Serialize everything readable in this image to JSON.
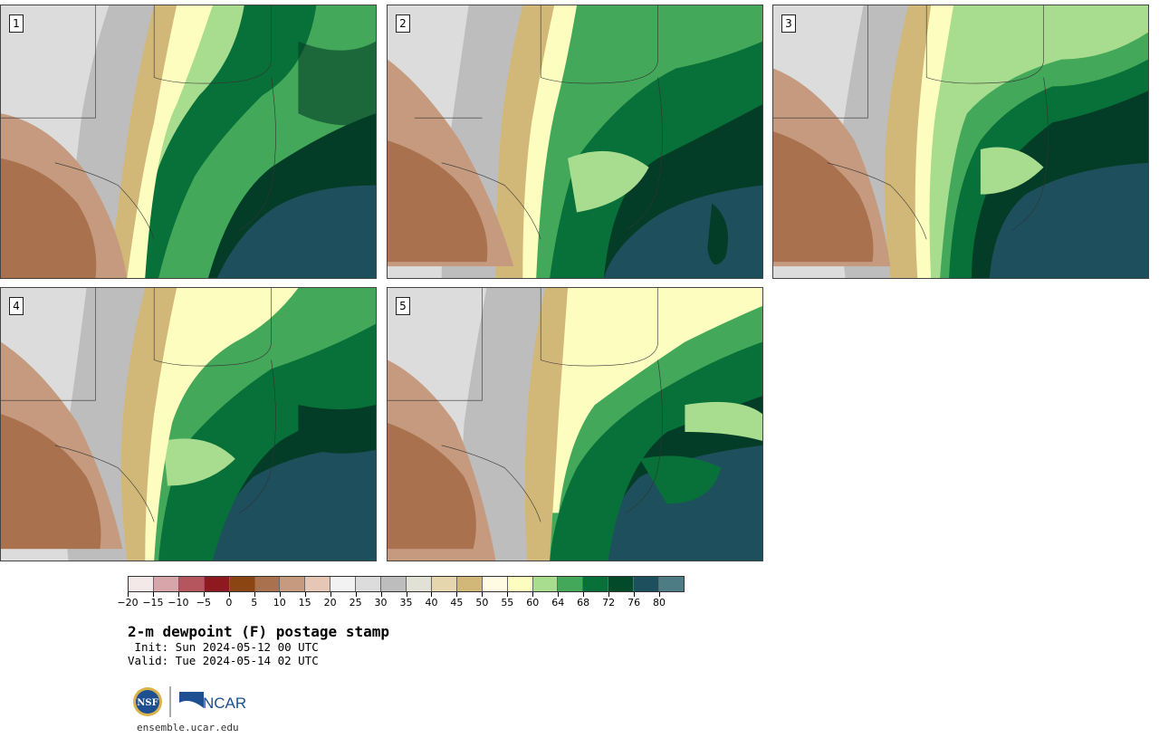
{
  "panels": [
    {
      "label": "1"
    },
    {
      "label": "2"
    },
    {
      "label": "3"
    },
    {
      "label": "4"
    },
    {
      "label": "5"
    }
  ],
  "colorbar": {
    "colors": [
      "#f3e9e9",
      "#d8a5aa",
      "#b5565f",
      "#8e1a1f",
      "#8a4513",
      "#a9714d",
      "#c59a7e",
      "#e6c7b5",
      "#f2f2f2",
      "#dcdcdc",
      "#bdbdbd",
      "#e2e1d5",
      "#e5d6ad",
      "#d2b878",
      "#fffbe3",
      "#fdfdc0",
      "#a8dc8f",
      "#43a85a",
      "#087039",
      "#024a2a",
      "#1e4f5c",
      "#4e7c84"
    ],
    "tick_labels": [
      "−20",
      "−15",
      "−10",
      "−5",
      "0",
      "5",
      "10",
      "15",
      "20",
      "25",
      "30",
      "35",
      "40",
      "45",
      "50",
      "55",
      "60",
      "64",
      "68",
      "72",
      "76",
      "80"
    ]
  },
  "title": "2-m dewpoint (F) postage stamp",
  "init": " Init: Sun 2024-05-12 00 UTC",
  "valid": "Valid: Tue 2024-05-14 02 UTC",
  "logos": {
    "nsf_text": "NSF",
    "ncar_text": "NCAR"
  },
  "url": "ensemble.ucar.edu"
}
